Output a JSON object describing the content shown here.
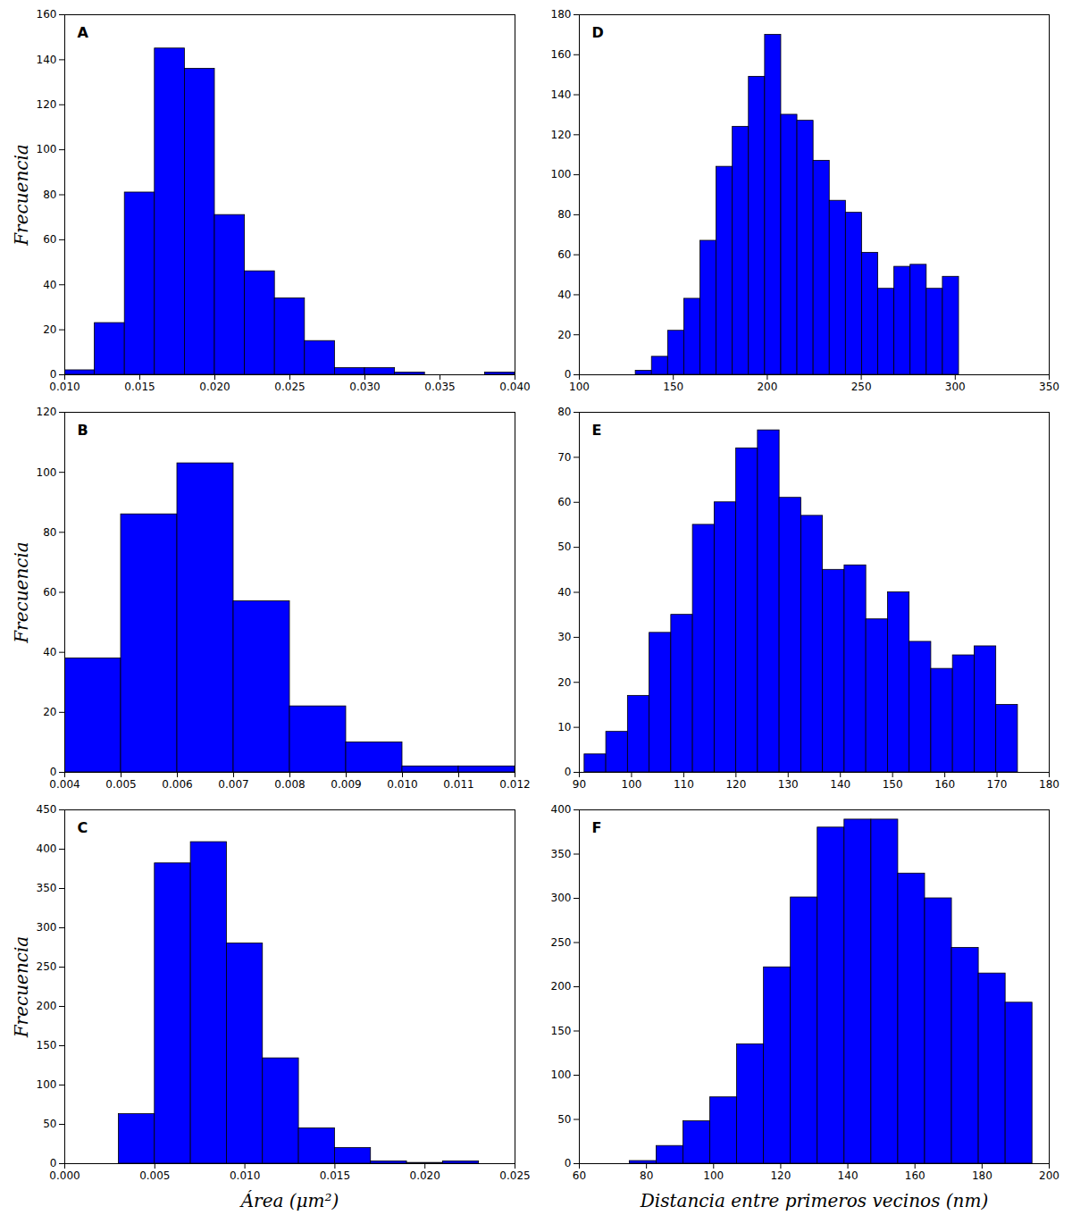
{
  "chart_data": [
    {
      "type": "histogram",
      "title": "A",
      "color": "#0000ff",
      "y_label": "Frecuencia",
      "bins": [
        0.01,
        0.012,
        0.014,
        0.016,
        0.018,
        0.02,
        0.022,
        0.024,
        0.026,
        0.028,
        0.03,
        0.032,
        0.034,
        0.036,
        0.038,
        0.04
      ],
      "values": [
        2,
        23,
        81,
        145,
        136,
        71,
        46,
        34,
        15,
        3,
        3,
        1,
        0,
        0,
        1
      ],
      "xlim": [
        0.01,
        0.04
      ],
      "xticks": [
        {
          "value": 0.01,
          "label": "0.010"
        },
        0.015,
        {
          "value": 0.02,
          "label": "0.020"
        },
        0.025,
        {
          "value": 0.03,
          "label": "0.030"
        },
        0.035,
        {
          "value": 0.04,
          "label": "0.040"
        }
      ],
      "ylim": [
        0,
        160
      ],
      "yticks": [
        0,
        20,
        40,
        60,
        80,
        100,
        120,
        140,
        160
      ]
    },
    {
      "type": "histogram",
      "title": "D",
      "color": "#0000ff",
      "bins": [
        130,
        138.6,
        147.2,
        155.8,
        164.4,
        173,
        181.6,
        190.2,
        198.8,
        207.4,
        216,
        224.6,
        233.2,
        241.8,
        250.4,
        259,
        267.6,
        276.2,
        284.8,
        293.4,
        302
      ],
      "values": [
        2,
        9,
        22,
        38,
        67,
        104,
        124,
        149,
        170,
        130,
        127,
        107,
        87,
        81,
        61,
        43,
        54,
        55,
        43,
        49
      ],
      "xlim": [
        100,
        350
      ],
      "xticks": [
        100,
        150,
        200,
        250,
        300,
        350
      ],
      "ylim": [
        0,
        180
      ],
      "yticks": [
        0,
        20,
        40,
        60,
        80,
        100,
        120,
        140,
        160,
        180
      ]
    },
    {
      "type": "histogram",
      "title": "B",
      "color": "#0000ff",
      "y_label": "Frecuencia",
      "bins": [
        0.004,
        0.005,
        0.006,
        0.007,
        0.008,
        0.009,
        0.01,
        0.011,
        0.012
      ],
      "values": [
        38,
        86,
        103,
        57,
        22,
        10,
        2,
        2
      ],
      "xlim": [
        0.004,
        0.012
      ],
      "xticks": [
        0.004,
        0.005,
        0.006,
        0.007,
        0.008,
        0.009,
        {
          "value": 0.01,
          "label": "0.010"
        },
        0.011,
        0.012
      ],
      "ylim": [
        0,
        120
      ],
      "yticks": [
        0,
        20,
        40,
        60,
        80,
        100,
        120
      ]
    },
    {
      "type": "histogram",
      "title": "E",
      "color": "#0000ff",
      "bins": [
        91,
        95.15,
        99.3,
        103.45,
        107.6,
        111.75,
        115.9,
        120.05,
        124.2,
        128.35,
        132.5,
        136.65,
        140.8,
        144.95,
        149.1,
        153.25,
        157.4,
        161.55,
        165.7,
        169.85,
        174
      ],
      "values": [
        4,
        9,
        17,
        31,
        35,
        55,
        60,
        72,
        76,
        61,
        57,
        45,
        46,
        34,
        40,
        29,
        23,
        26,
        28,
        15
      ],
      "xlim": [
        90,
        180
      ],
      "xticks": [
        90,
        100,
        110,
        120,
        130,
        140,
        150,
        160,
        170,
        180
      ],
      "ylim": [
        0,
        80
      ],
      "yticks": [
        0,
        10,
        20,
        30,
        40,
        50,
        60,
        70,
        80
      ]
    },
    {
      "type": "histogram",
      "title": "C",
      "color": "#0000ff",
      "y_label": "Frecuencia",
      "x_label": "Área (μm²)",
      "bins": [
        0.003,
        0.005,
        0.007,
        0.009,
        0.011,
        0.013,
        0.015,
        0.017,
        0.019,
        0.021,
        0.023
      ],
      "values": [
        63,
        382,
        409,
        280,
        134,
        45,
        20,
        3,
        1,
        3
      ],
      "xlim": [
        0.0,
        0.025
      ],
      "xticks": [
        {
          "value": 0,
          "label": "0.000"
        },
        0.005,
        {
          "value": 0.01,
          "label": "0.010"
        },
        0.015,
        {
          "value": 0.02,
          "label": "0.020"
        },
        0.025
      ],
      "ylim": [
        0,
        450
      ],
      "yticks": [
        0,
        50,
        100,
        150,
        200,
        250,
        300,
        350,
        400,
        450
      ]
    },
    {
      "type": "histogram",
      "title": "F",
      "color": "#0000ff",
      "x_label": "Distancia entre primeros vecinos (nm)",
      "bins": [
        75,
        83,
        91,
        99,
        107,
        115,
        123,
        131,
        139,
        147,
        155,
        163,
        171,
        179,
        187,
        195
      ],
      "values": [
        3,
        20,
        48,
        75,
        135,
        222,
        301,
        380,
        389,
        389,
        328,
        300,
        244,
        215,
        182
      ],
      "xlim": [
        60,
        200
      ],
      "xticks": [
        60,
        80,
        100,
        120,
        140,
        160,
        180,
        200
      ],
      "ylim": [
        0,
        400
      ],
      "yticks": [
        0,
        50,
        100,
        150,
        200,
        250,
        300,
        350,
        400
      ]
    }
  ]
}
